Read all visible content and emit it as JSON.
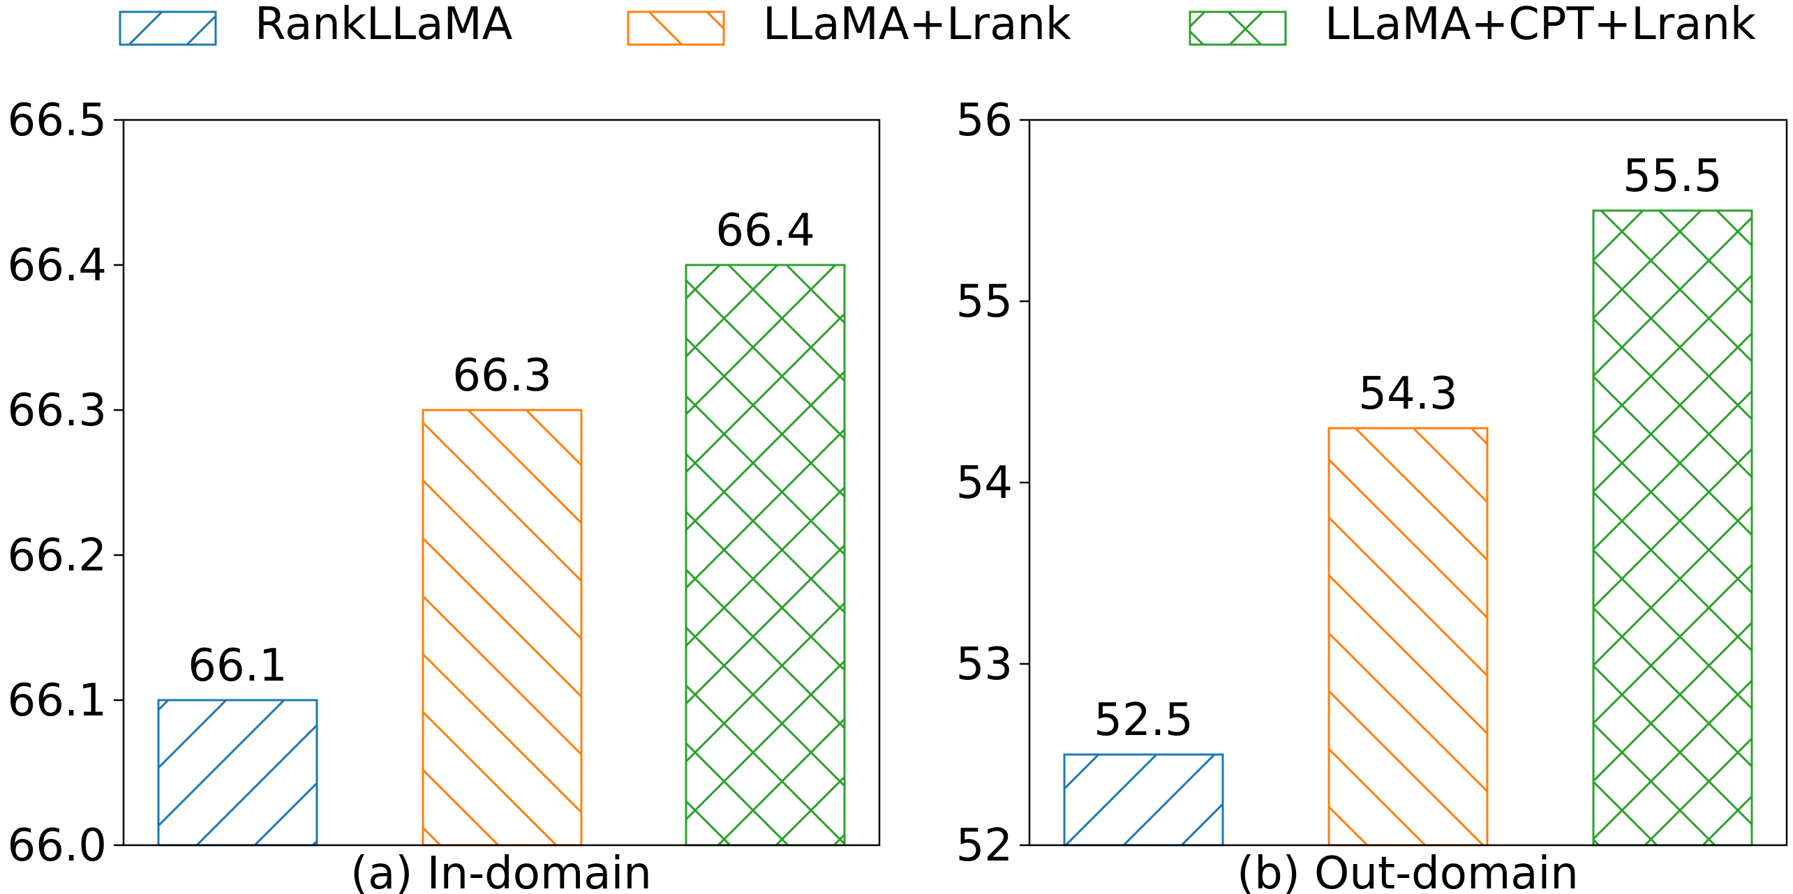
{
  "legend": [
    {
      "label": "RankLLaMA",
      "color": "#1f77b4",
      "hatch": "/"
    },
    {
      "label": "LLaMA+Lrank",
      "color": "#ff7f0e",
      "hatch": "\\"
    },
    {
      "label": "LLaMA+CPT+Lrank",
      "color": "#2ca02c",
      "hatch": "x"
    }
  ],
  "chart_data": [
    {
      "type": "bar",
      "title": "(a) In-domain",
      "categories": [
        "RankLLaMA",
        "LLaMA+Lrank",
        "LLaMA+CPT+Lrank"
      ],
      "values": [
        66.1,
        66.3,
        66.4
      ],
      "value_labels": [
        "66.1",
        "66.3",
        "66.4"
      ],
      "ylim": [
        66.0,
        66.5
      ],
      "yticks": [
        66.0,
        66.1,
        66.2,
        66.3,
        66.4,
        66.5
      ],
      "ytick_labels": [
        "66.0",
        "66.1",
        "66.2",
        "66.3",
        "66.4",
        "66.5"
      ],
      "grid": false
    },
    {
      "type": "bar",
      "title": "(b) Out-domain",
      "categories": [
        "RankLLaMA",
        "LLaMA+Lrank",
        "LLaMA+CPT+Lrank"
      ],
      "values": [
        52.5,
        54.3,
        55.5
      ],
      "value_labels": [
        "52.5",
        "54.3",
        "55.5"
      ],
      "ylim": [
        52,
        56
      ],
      "yticks": [
        52,
        53,
        54,
        55,
        56
      ],
      "ytick_labels": [
        "52",
        "53",
        "54",
        "55",
        "56"
      ],
      "grid": false
    }
  ]
}
